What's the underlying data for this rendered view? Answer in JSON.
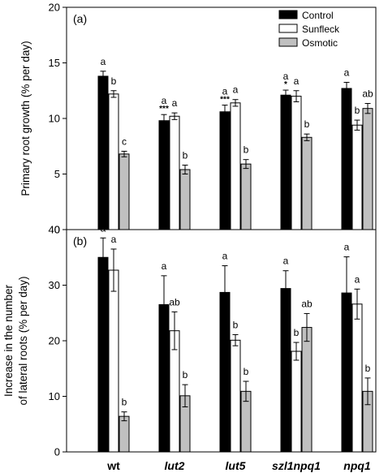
{
  "chart_data": [
    {
      "type": "bar",
      "panel_label": "(a)",
      "ylabel": "Primary root growth (% per day)",
      "ylim": [
        0,
        20
      ],
      "yticks": [
        "0",
        "5",
        "10",
        "15",
        "20"
      ],
      "categories": [
        "wt",
        "lut2",
        "lut5",
        "szl1npq1",
        "npq1"
      ],
      "legend": "top-right",
      "series": [
        {
          "name": "Control",
          "color": "#000000",
          "values": [
            13.8,
            9.8,
            10.6,
            12.1,
            12.7
          ],
          "errors": [
            0.45,
            0.55,
            0.6,
            0.45,
            0.55
          ],
          "labels": [
            "a",
            "a",
            "a",
            "a",
            "a"
          ],
          "stars": [
            "",
            "***",
            "***",
            "*",
            ""
          ]
        },
        {
          "name": "Sunfleck",
          "color": "#ffffff",
          "values": [
            12.2,
            10.2,
            11.4,
            12.0,
            9.4
          ],
          "errors": [
            0.3,
            0.3,
            0.3,
            0.5,
            0.45
          ],
          "labels": [
            "b",
            "a",
            "a",
            "a",
            "b"
          ],
          "stars": [
            "",
            "",
            "",
            "",
            ""
          ]
        },
        {
          "name": "Osmotic",
          "color": "#c0c0c0",
          "values": [
            6.8,
            5.4,
            5.9,
            8.3,
            10.9
          ],
          "errors": [
            0.25,
            0.4,
            0.4,
            0.3,
            0.45
          ],
          "labels": [
            "c",
            "b",
            "b",
            "b",
            "ab"
          ],
          "stars": [
            "",
            "",
            "",
            "",
            ""
          ]
        }
      ]
    },
    {
      "type": "bar",
      "panel_label": "(b)",
      "ylabel": [
        "Increase in the number",
        "of lateral roots (% per day)"
      ],
      "ylim": [
        0,
        40
      ],
      "yticks": [
        "0",
        "10",
        "20",
        "30",
        "40"
      ],
      "categories": [
        "wt",
        "lut2",
        "lut5",
        "szl1npq1",
        "npq1"
      ],
      "series": [
        {
          "name": "Control",
          "color": "#000000",
          "values": [
            35.0,
            26.5,
            28.7,
            29.4,
            28.6
          ],
          "errors": [
            3.5,
            5.2,
            4.8,
            3.2,
            6.5
          ],
          "labels": [
            "a",
            "a",
            "a",
            "a",
            "a"
          ]
        },
        {
          "name": "Sunfleck",
          "color": "#ffffff",
          "values": [
            32.7,
            21.8,
            20.1,
            18.1,
            26.6
          ],
          "errors": [
            3.8,
            3.4,
            1.0,
            1.6,
            2.7
          ],
          "labels": [
            "a",
            "ab",
            "b",
            "b",
            "a"
          ]
        },
        {
          "name": "Osmotic",
          "color": "#c0c0c0",
          "values": [
            6.4,
            10.1,
            10.9,
            22.4,
            10.9
          ],
          "errors": [
            0.8,
            2.0,
            1.8,
            2.5,
            2.4
          ],
          "labels": [
            "b",
            "b",
            "b",
            "ab",
            "b"
          ]
        }
      ]
    }
  ]
}
